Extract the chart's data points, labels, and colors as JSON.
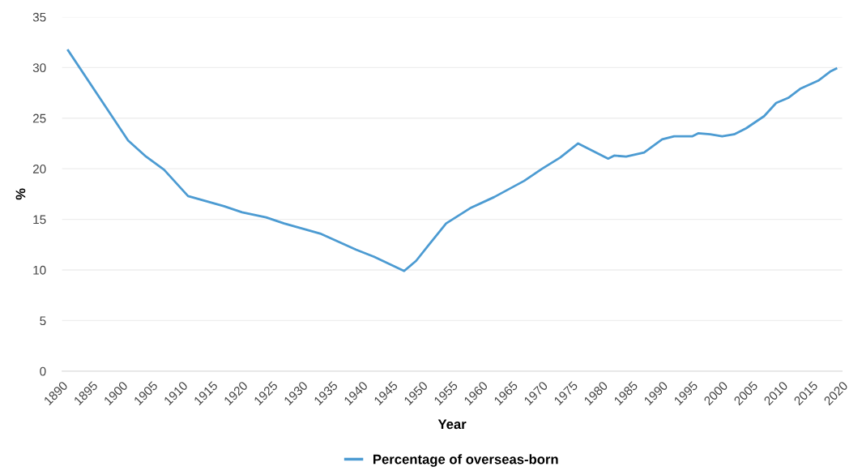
{
  "chart_data": {
    "type": "line",
    "xlabel": "Year",
    "ylabel": "%",
    "x": [
      1891,
      1901,
      1904,
      1907,
      1911,
      1914,
      1917,
      1920,
      1924,
      1927,
      1930,
      1933,
      1936,
      1939,
      1942,
      1947,
      1949,
      1951,
      1954,
      1958,
      1962,
      1967,
      1970,
      1973,
      1976,
      1981,
      1982,
      1984,
      1987,
      1990,
      1992,
      1995,
      1996,
      1998,
      2000,
      2002,
      2004,
      2007,
      2009,
      2011,
      2013,
      2016,
      2018,
      2019
    ],
    "series": [
      {
        "name": "Percentage of overseas-born",
        "color": "#4c9bd2",
        "values": [
          31.7,
          22.8,
          21.2,
          19.9,
          17.3,
          16.8,
          16.3,
          15.7,
          15.2,
          14.6,
          14.1,
          13.6,
          12.8,
          12.0,
          11.3,
          9.9,
          10.9,
          12.4,
          14.6,
          16.1,
          17.2,
          18.8,
          20.0,
          21.1,
          22.5,
          21.0,
          21.3,
          21.2,
          21.6,
          22.9,
          23.2,
          23.2,
          23.5,
          23.4,
          23.2,
          23.4,
          24.0,
          25.2,
          26.5,
          27.0,
          27.9,
          28.7,
          29.6,
          29.9
        ]
      }
    ],
    "xlim": [
      1890,
      2020
    ],
    "xticks": [
      1890,
      1895,
      1900,
      1905,
      1910,
      1915,
      1920,
      1925,
      1930,
      1935,
      1940,
      1945,
      1950,
      1955,
      1960,
      1965,
      1970,
      1975,
      1980,
      1985,
      1990,
      1995,
      2000,
      2005,
      2010,
      2015,
      2020
    ],
    "ylim": [
      0,
      35
    ],
    "yticks": [
      0,
      5,
      10,
      15,
      20,
      25,
      30,
      35
    ],
    "grid": "y",
    "legend": "bottom",
    "marker": "none",
    "line_style": "solid"
  }
}
